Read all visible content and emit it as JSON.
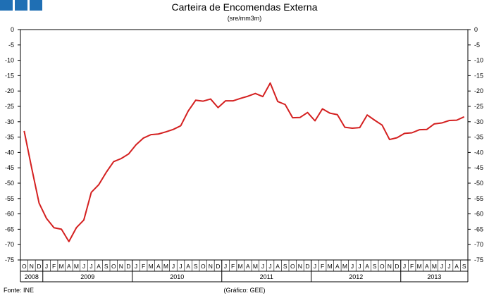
{
  "header": {
    "title": "Carteira de Encomendas Externa",
    "subtitle": "(sre/mm3m)"
  },
  "footer": {
    "source": "Fonte: INE",
    "credit": "(Gráfico: GEE)"
  },
  "colors": {
    "line": "#d42020",
    "logo": "#1f6fb4"
  },
  "chart_data": {
    "type": "line",
    "title": "Carteira de Encomendas Externa",
    "subtitle": "(sre/mm3m)",
    "xlabel": "",
    "ylabel": "",
    "ylim": [
      -75,
      0
    ],
    "yticks": [
      0,
      -5,
      -10,
      -15,
      -20,
      -25,
      -30,
      -35,
      -40,
      -45,
      -50,
      -55,
      -60,
      -65,
      -70,
      -75
    ],
    "grid": false,
    "legend": "none",
    "dual_y_axis": true,
    "months": [
      "O",
      "N",
      "D",
      "J",
      "F",
      "M",
      "A",
      "M",
      "J",
      "J",
      "A",
      "S",
      "O",
      "N",
      "D",
      "J",
      "F",
      "M",
      "A",
      "M",
      "J",
      "J",
      "A",
      "S",
      "O",
      "N",
      "D",
      "J",
      "F",
      "M",
      "A",
      "M",
      "J",
      "J",
      "A",
      "S",
      "O",
      "N",
      "D",
      "J",
      "F",
      "M",
      "A",
      "M",
      "J",
      "J",
      "A",
      "S",
      "O",
      "N",
      "D",
      "J",
      "F",
      "M",
      "A",
      "M",
      "J",
      "J",
      "A",
      "S"
    ],
    "years": [
      {
        "label": "2008",
        "start": 0,
        "count": 3
      },
      {
        "label": "2009",
        "start": 3,
        "count": 12
      },
      {
        "label": "2010",
        "start": 15,
        "count": 12
      },
      {
        "label": "2011",
        "start": 27,
        "count": 12
      },
      {
        "label": "2012",
        "start": 39,
        "count": 12
      },
      {
        "label": "2013",
        "start": 51,
        "count": 9
      }
    ],
    "series": [
      {
        "values": [
          -33,
          -45,
          -56.5,
          -61.5,
          -64.5,
          -65,
          -69,
          -64.5,
          -62,
          -53,
          -50.5,
          -46.5,
          -43,
          -42,
          -40.5,
          -37.5,
          -35.3,
          -34.2,
          -34,
          -33.3,
          -32.5,
          -31.3,
          -26.5,
          -23,
          -23.3,
          -22.6,
          -25.4,
          -23.2,
          -23.2,
          -22.4,
          -21.7,
          -20.8,
          -21.8,
          -17.4,
          -23.4,
          -24.4,
          -28.7,
          -28.6,
          -27,
          -29.7,
          -25.8,
          -27.2,
          -27.7,
          -31.8,
          -32.1,
          -31.9,
          -27.8,
          -29.5,
          -31.1,
          -35.8,
          -35.2,
          -33.8,
          -33.6,
          -32.6,
          -32.5,
          -30.7,
          -30.4,
          -29.6,
          -29.5,
          -28.4
        ]
      }
    ]
  }
}
